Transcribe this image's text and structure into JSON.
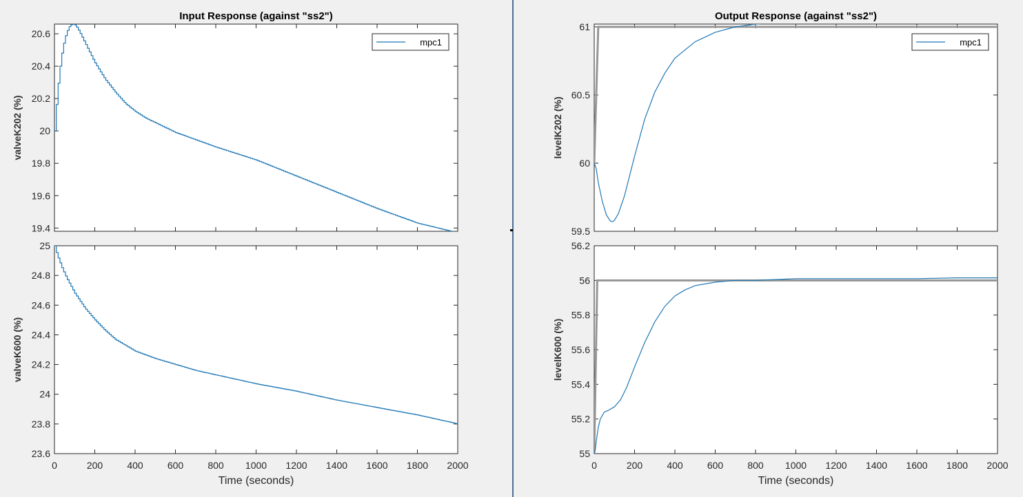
{
  "colors": {
    "series": "#1f77b4",
    "reference": "#969696",
    "axes": "#262626",
    "background": "#f0f0f0",
    "divider": "#4a6f93"
  },
  "chart_data": [
    {
      "id": "input-valveK202",
      "type": "line",
      "title": "Input Response (against \"ss2\")",
      "ylabel": "valveK202 (%)",
      "xlabel": "",
      "xlim": [
        0,
        2000
      ],
      "ylim": [
        19.38,
        20.66
      ],
      "xticks": [],
      "yticks": [
        "19.4",
        "19.6",
        "19.8",
        "20",
        "20.2",
        "20.4",
        "20.6"
      ],
      "legend": {
        "position": "top-right",
        "entries": [
          "mpc1"
        ]
      },
      "step": true,
      "series": [
        {
          "name": "mpc1",
          "x": [
            0,
            10,
            20,
            30,
            40,
            50,
            60,
            70,
            80,
            90,
            100,
            110,
            120,
            140,
            160,
            180,
            200,
            250,
            300,
            350,
            400,
            450,
            500,
            600,
            700,
            800,
            1000,
            1200,
            1400,
            1600,
            1800,
            2000
          ],
          "y": [
            20.0,
            20.18,
            20.32,
            20.43,
            20.51,
            20.57,
            20.61,
            20.64,
            20.655,
            20.66,
            20.655,
            20.64,
            20.62,
            20.57,
            20.52,
            20.47,
            20.42,
            20.32,
            20.24,
            20.17,
            20.12,
            20.08,
            20.05,
            19.99,
            19.945,
            19.9,
            19.82,
            19.72,
            19.62,
            19.52,
            19.43,
            19.37
          ]
        }
      ]
    },
    {
      "id": "input-valveK600",
      "type": "line",
      "title": "",
      "ylabel": "valveK600 (%)",
      "xlabel": "Time (seconds)",
      "xlim": [
        0,
        2000
      ],
      "ylim": [
        23.6,
        25
      ],
      "xticks": [
        "0",
        "200",
        "400",
        "600",
        "800",
        "1000",
        "1200",
        "1400",
        "1600",
        "1800",
        "2000"
      ],
      "yticks": [
        "23.6",
        "23.8",
        "24",
        "24.2",
        "24.4",
        "24.6",
        "24.8",
        "25"
      ],
      "step": true,
      "series": [
        {
          "name": "mpc1",
          "x": [
            0,
            10,
            20,
            40,
            60,
            80,
            100,
            150,
            200,
            250,
            300,
            350,
            400,
            500,
            600,
            700,
            800,
            1000,
            1200,
            1400,
            1600,
            1800,
            2000
          ],
          "y": [
            25.0,
            24.95,
            24.91,
            24.84,
            24.78,
            24.73,
            24.68,
            24.58,
            24.5,
            24.43,
            24.37,
            24.33,
            24.29,
            24.24,
            24.2,
            24.16,
            24.13,
            24.07,
            24.02,
            23.96,
            23.91,
            23.86,
            23.8
          ]
        }
      ]
    },
    {
      "id": "output-levelK202",
      "type": "line",
      "title": "Output Response (against \"ss2\")",
      "ylabel": "levelK202 (%)",
      "xlabel": "",
      "xlim": [
        0,
        2000
      ],
      "ylim": [
        59.5,
        61.02
      ],
      "xticks": [],
      "yticks": [
        "59.5",
        "60",
        "60.5",
        "61"
      ],
      "legend": {
        "position": "top-right",
        "entries": [
          "mpc1"
        ]
      },
      "reference": {
        "x": [
          0,
          20,
          2000
        ],
        "y": [
          60,
          61,
          61
        ]
      },
      "series": [
        {
          "name": "mpc1",
          "x": [
            0,
            10,
            20,
            40,
            60,
            80,
            90,
            100,
            120,
            150,
            200,
            250,
            300,
            350,
            400,
            500,
            600,
            700,
            800,
            900,
            1000,
            1200,
            1400,
            1600,
            1800,
            2000
          ],
          "y": [
            60.0,
            59.96,
            59.86,
            59.72,
            59.62,
            59.575,
            59.57,
            59.58,
            59.63,
            59.76,
            60.05,
            60.32,
            60.52,
            60.66,
            60.77,
            60.89,
            60.96,
            61.0,
            61.02,
            61.03,
            61.035,
            61.04,
            61.04,
            61.04,
            61.04,
            61.04
          ]
        }
      ]
    },
    {
      "id": "output-levelK600",
      "type": "line",
      "title": "",
      "ylabel": "levelK600 (%)",
      "xlabel": "Time (seconds)",
      "xlim": [
        0,
        2000
      ],
      "ylim": [
        55,
        56.2
      ],
      "xticks": [
        "0",
        "200",
        "400",
        "600",
        "800",
        "1000",
        "1200",
        "1400",
        "1600",
        "1800",
        "2000"
      ],
      "yticks": [
        "55",
        "55.2",
        "55.4",
        "55.6",
        "55.8",
        "56",
        "56.2"
      ],
      "reference": {
        "x": [
          0,
          15,
          2000
        ],
        "y": [
          55,
          56,
          56
        ]
      },
      "series": [
        {
          "name": "mpc1",
          "x": [
            0,
            5,
            10,
            20,
            30,
            50,
            70,
            100,
            130,
            160,
            200,
            250,
            300,
            350,
            400,
            450,
            500,
            600,
            700,
            800,
            900,
            1000,
            1200,
            1400,
            1600,
            1800,
            2000
          ],
          "y": [
            55.0,
            55.02,
            55.07,
            55.15,
            55.2,
            55.24,
            55.25,
            55.27,
            55.31,
            55.38,
            55.5,
            55.64,
            55.76,
            55.85,
            55.91,
            55.945,
            55.97,
            55.99,
            56.0,
            56.0,
            56.005,
            56.01,
            56.01,
            56.01,
            56.01,
            56.015,
            56.015
          ]
        }
      ]
    }
  ]
}
